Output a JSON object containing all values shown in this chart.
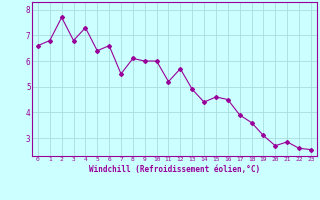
{
  "x": [
    0,
    1,
    2,
    3,
    4,
    5,
    6,
    7,
    8,
    9,
    10,
    11,
    12,
    13,
    14,
    15,
    16,
    17,
    18,
    19,
    20,
    21,
    22,
    23
  ],
  "y": [
    6.6,
    6.8,
    7.7,
    6.8,
    7.3,
    6.4,
    6.6,
    5.5,
    6.1,
    6.0,
    6.0,
    5.2,
    5.7,
    4.9,
    4.4,
    4.6,
    4.5,
    3.9,
    3.6,
    3.1,
    2.7,
    2.85,
    2.6,
    2.55
  ],
  "line_color": "#990099",
  "marker": "D",
  "marker_size": 2.0,
  "bg_color": "#ccffff",
  "grid_color": "#aadddd",
  "xlabel": "Windchill (Refroidissement éolien,°C)",
  "xlabel_color": "#990099",
  "tick_color": "#990099",
  "axis_color": "#990099",
  "xlim": [
    -0.5,
    23.5
  ],
  "ylim": [
    2.3,
    8.3
  ],
  "yticks": [
    3,
    4,
    5,
    6,
    7,
    8
  ],
  "xticks": [
    0,
    1,
    2,
    3,
    4,
    5,
    6,
    7,
    8,
    9,
    10,
    11,
    12,
    13,
    14,
    15,
    16,
    17,
    18,
    19,
    20,
    21,
    22,
    23
  ]
}
